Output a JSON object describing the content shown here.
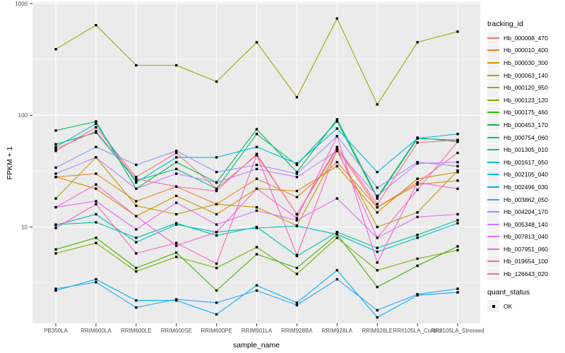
{
  "style": {
    "background": "#FFFFFF",
    "panel_bg": "#EBEBEB",
    "grid_major": "#FFFFFF",
    "grid_minor": "#FFFFFF",
    "axis_tick_color": "#333333",
    "tick_label_color": "#4D4D4D",
    "title_color": "#000000",
    "legend_key_bg": "#F2F2F2",
    "point_color": "#000000"
  },
  "chart_data": {
    "type": "line",
    "title": "",
    "xlabel": "sample_name",
    "ylabel": "FPKM + 1",
    "yscale": "log10",
    "ylim": [
      1.37,
      1030
    ],
    "yticks": [
      10,
      100,
      1000
    ],
    "grid": "white major gridlines at decades and categories, minor at half-decades",
    "legend_position": "right",
    "marker": "black-square",
    "categories": [
      "PB350LA",
      "RRIM600LA",
      "RRIM600LE",
      "RRIM600SE",
      "RRIM600PE",
      "RRIM901LA",
      "RRIM928BA",
      "RRIM928LA",
      "RRIM928LE",
      "RRII105LA_Control",
      "RRII105LA_Stressed"
    ],
    "series": [
      {
        "name": "Hb_000008_470",
        "color": "#F8766D",
        "values": [
          48,
          78,
          28,
          46,
          22,
          44,
          13,
          50,
          15,
          25,
          46
        ]
      },
      {
        "name": "Hb_000010_400",
        "color": "#EA8331",
        "values": [
          28,
          30,
          17,
          23,
          16,
          27,
          18.5,
          38,
          15,
          24,
          26
        ]
      },
      {
        "name": "Hb_000030_300",
        "color": "#D89000",
        "values": [
          28,
          22,
          12.5,
          19,
          13,
          22,
          21,
          35,
          13.5,
          27,
          31
        ]
      },
      {
        "name": "Hb_000063_140",
        "color": "#C09B00",
        "values": [
          18,
          42,
          15.5,
          13,
          16,
          15,
          10.3,
          48,
          10,
          13.5,
          32
        ]
      },
      {
        "name": "Hb_000120_950",
        "color": "#A3A500",
        "values": [
          390,
          640,
          280,
          280,
          200,
          450,
          145,
          735,
          125,
          450,
          560
        ]
      },
      {
        "name": "Hb_000123_120",
        "color": "#7CAE00",
        "values": [
          5.8,
          7.2,
          4.0,
          5.4,
          4.3,
          6.6,
          3.8,
          8.0,
          4.1,
          5.2,
          6.2
        ]
      },
      {
        "name": "Hb_000175_460",
        "color": "#39B600",
        "values": [
          6.3,
          8.0,
          4.3,
          5.9,
          2.7,
          5.7,
          4.3,
          8.6,
          2.9,
          4.5,
          6.7
        ]
      },
      {
        "name": "Hb_000453_170",
        "color": "#00BB4E",
        "values": [
          73,
          88,
          22,
          38,
          25,
          75,
          31,
          92,
          18.5,
          63,
          58
        ]
      },
      {
        "name": "Hb_000754_060",
        "color": "#00BF7D",
        "values": [
          55,
          70,
          26,
          33,
          22,
          68,
          36,
          88,
          18,
          62,
          60
        ]
      },
      {
        "name": "Hb_001305_010",
        "color": "#00C1A3",
        "values": [
          10.5,
          11,
          8,
          10.8,
          8.4,
          10,
          5.5,
          9,
          6.5,
          8.5,
          11.5
        ]
      },
      {
        "name": "Hb_001617_050",
        "color": "#00BFC4",
        "values": [
          10.4,
          13,
          7.3,
          10.5,
          9,
          9.8,
          10.2,
          8.6,
          6.0,
          8.0,
          10.8
        ]
      },
      {
        "name": "Hb_002105_040",
        "color": "#00BAE0",
        "values": [
          52,
          84,
          25,
          42,
          42,
          52,
          37,
          76,
          31,
          62,
          68
        ]
      },
      {
        "name": "Hb_002496_030",
        "color": "#00B0F6",
        "values": [
          2.7,
          3.4,
          2.2,
          2.2,
          1.65,
          3.0,
          2.1,
          4.1,
          1.55,
          2.45,
          2.6
        ]
      },
      {
        "name": "Hb_003862_050",
        "color": "#35A2FF",
        "values": [
          2.8,
          3.2,
          1.9,
          2.25,
          2.1,
          2.7,
          2.0,
          3.4,
          1.8,
          2.5,
          2.8
        ]
      },
      {
        "name": "Hb_004204_170",
        "color": "#9590FF",
        "values": [
          34,
          52,
          36,
          48,
          31,
          36,
          30,
          65,
          22.5,
          38,
          35
        ]
      },
      {
        "name": "Hb_005348_140",
        "color": "#C77CFF",
        "values": [
          30,
          42,
          22,
          30,
          25,
          33,
          28,
          48,
          19,
          37,
          38
        ]
      },
      {
        "name": "Hb_007813_040",
        "color": "#E76BF3",
        "values": [
          15,
          17,
          9.5,
          16.5,
          10.5,
          14,
          11.5,
          18,
          8,
          12.3,
          13
        ]
      },
      {
        "name": "Hb_007951_060",
        "color": "#FA62DB",
        "values": [
          15,
          24,
          12.5,
          6.8,
          9,
          22,
          12,
          65,
          4.8,
          25,
          22
        ]
      },
      {
        "name": "Hb_019654_100",
        "color": "#FF62BC",
        "values": [
          9.8,
          16,
          5.8,
          7.2,
          4.7,
          44,
          5.6,
          50,
          8,
          21.5,
          58
        ]
      },
      {
        "name": "Hb_126643_020",
        "color": "#FF6A98",
        "values": [
          50,
          72,
          27,
          23,
          21,
          45,
          13,
          52,
          16,
          57,
          60
        ]
      }
    ],
    "legends": {
      "tracking": {
        "title": "tracking_id"
      },
      "quant": {
        "title": "quant_status",
        "items": [
          {
            "label": "OK",
            "marker": "black-square",
            "color": "#000000"
          }
        ]
      }
    }
  }
}
